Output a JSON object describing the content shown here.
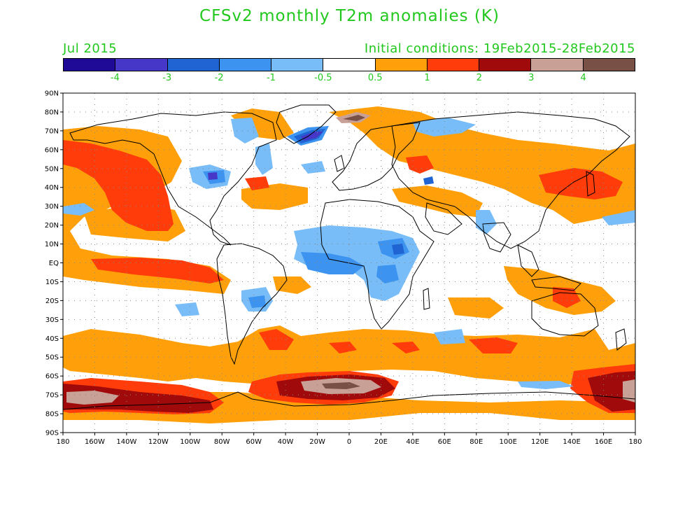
{
  "title": "CFSv2 monthly T2m anomalies (K)",
  "valid_month": "Jul 2015",
  "initial_conditions": "Initial conditions: 19Feb2015-28Feb2015",
  "colorbar": {
    "colors": [
      "#1e0a96",
      "#4637c8",
      "#1f64d2",
      "#3c93f0",
      "#78bdf7",
      "#ffffff",
      "#ffa00a",
      "#ff3c0a",
      "#a00a0a",
      "#c8a096",
      "#785046"
    ],
    "labels": [
      "-4",
      "-3",
      "-2",
      "-1",
      "-0.5",
      "0.5",
      "1",
      "2",
      "3",
      "4"
    ]
  },
  "axes": {
    "lat_labels": [
      "90N",
      "80N",
      "70N",
      "60N",
      "50N",
      "40N",
      "30N",
      "20N",
      "10N",
      "EQ",
      "10S",
      "20S",
      "30S",
      "40S",
      "50S",
      "60S",
      "70S",
      "80S",
      "90S"
    ],
    "lon_labels": [
      "180",
      "160W",
      "140W",
      "120W",
      "100W",
      "80W",
      "60W",
      "40W",
      "20W",
      "0",
      "20E",
      "40E",
      "60E",
      "80E",
      "100E",
      "120E",
      "140E",
      "160E",
      "180"
    ]
  },
  "map": {
    "projection": "cylindrical equidistant",
    "lon_range": [
      -180,
      180
    ],
    "lat_range": [
      -90,
      90
    ],
    "grid": "dotted every 20° lon, 10° lat"
  }
}
